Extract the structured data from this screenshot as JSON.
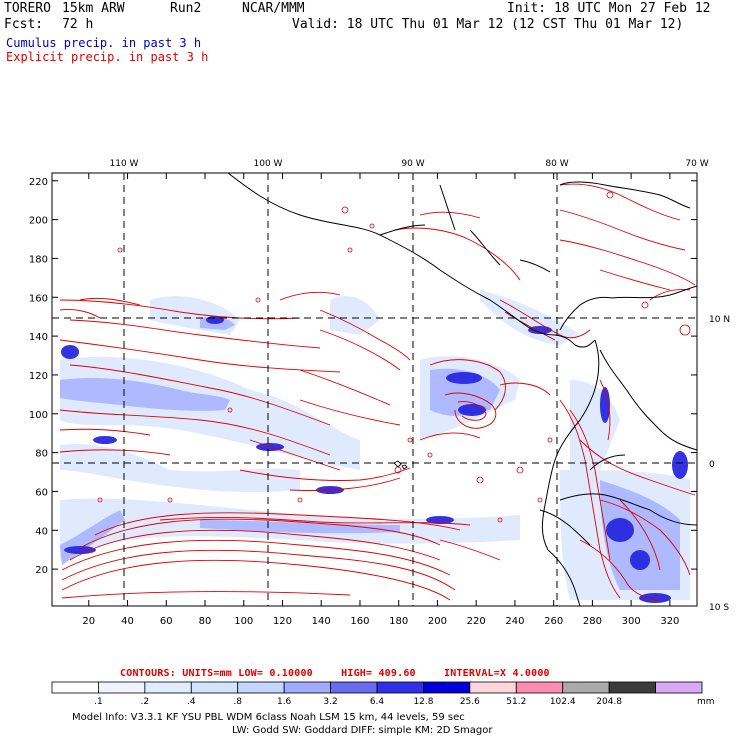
{
  "header": {
    "model": "TORERO",
    "resolution": "15km ARW",
    "run": "Run2",
    "center": "NCAR/MMM",
    "init": "Init: 18 UTC Mon 27 Feb 12",
    "fcst_label": "Fcst:",
    "fcst_value": "72 h",
    "valid": "Valid: 18 UTC Thu 01 Mar 12 (12 CST Thu 01 Mar 12)",
    "field1": "Cumulus precip. in past 3 h",
    "field2": "Explicit precip. in past 3 h"
  },
  "colors": {
    "field1": "#0000c0",
    "field2": "#e00000",
    "contour": "#e00000",
    "land": "#000000"
  },
  "map": {
    "longitude_labels": [
      "110 W",
      "100 W",
      "90 W",
      "80 W",
      "70 W"
    ],
    "latitude_labels": [
      "10 N",
      "0",
      "10 S"
    ],
    "x_ticks": [
      "20",
      "40",
      "60",
      "80",
      "100",
      "120",
      "140",
      "160",
      "180",
      "200",
      "220",
      "240",
      "260",
      "280",
      "300",
      "320"
    ],
    "y_ticks": [
      "20",
      "40",
      "60",
      "80",
      "100",
      "120",
      "140",
      "160",
      "180",
      "200",
      "220"
    ]
  },
  "contours": {
    "label": "CONTOURS:",
    "units": "UNITS=mm",
    "low": "LOW= 0.10000",
    "high": "HIGH= 409.60",
    "interval": "INTERVAL=X 4.0000"
  },
  "colorbar": {
    "unit": "mm",
    "labels": [
      ".1",
      ".2",
      ".4",
      ".8",
      "1.6",
      "3.2",
      "6.4",
      "12.8",
      "25.6",
      "51.2",
      "102.4",
      "204.8"
    ],
    "colors": [
      "#ffffff",
      "#eef3ff",
      "#e0ecff",
      "#d2e4ff",
      "#c2d6ff",
      "#a0aaff",
      "#6a6cf0",
      "#3030e8",
      "#0000d8",
      "#ffd6dc",
      "#ff8cb0",
      "#aaaaaa",
      "#3c3c3c",
      "#d8a8f4"
    ]
  },
  "footer": {
    "line1": "Model Info: V3.3.1    KF      YSU PBL   WDM 6class   Noah LSM   15 km,     44 levels,     59 sec",
    "line2": "LW: Godd SW: Goddard DIFF: simple KM: 2D Smagor"
  }
}
